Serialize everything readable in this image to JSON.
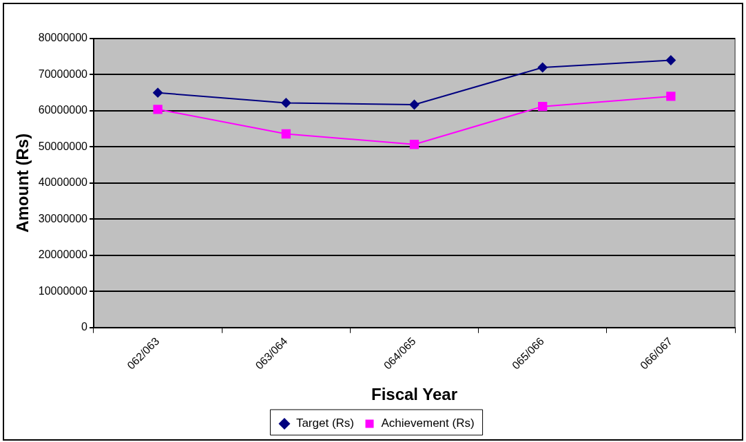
{
  "chart_data": {
    "type": "line",
    "xlabel": "Fiscal Year",
    "ylabel": "Amount (Rs)",
    "categories": [
      "062/063",
      "063/064",
      "064/065",
      "065/066",
      "066/067"
    ],
    "series": [
      {
        "name": "Target (Rs)",
        "color": "#000080",
        "marker": "diamond",
        "values": [
          65000000,
          62200000,
          61700000,
          72000000,
          74000000
        ]
      },
      {
        "name": "Achievement (Rs)",
        "color": "#ff00ff",
        "marker": "square",
        "values": [
          60400000,
          53600000,
          50700000,
          61200000,
          64000000
        ]
      }
    ],
    "ylim": [
      0,
      80000000
    ],
    "yticks": [
      0,
      10000000,
      20000000,
      30000000,
      40000000,
      50000000,
      60000000,
      70000000,
      80000000
    ],
    "grid": "y",
    "legend": "bottom"
  }
}
